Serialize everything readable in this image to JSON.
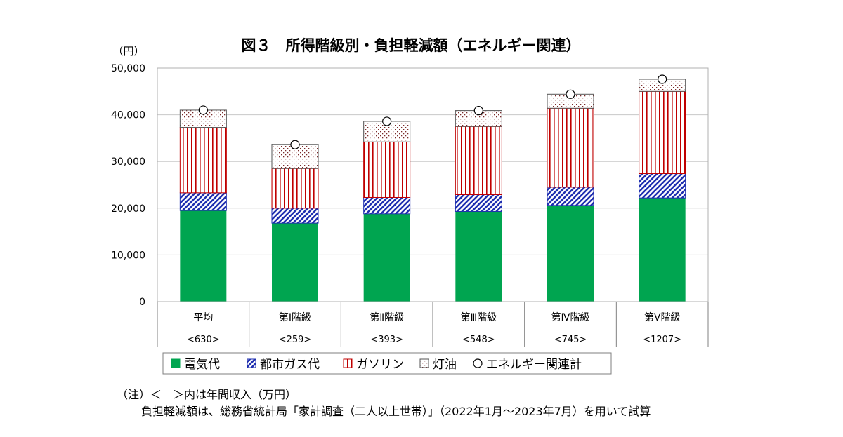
{
  "chart_data": {
    "type": "bar",
    "title": "図３　所得階級別・負担軽減額（エネルギー関連）",
    "yunit": "（円）",
    "ylim": [
      0,
      50000
    ],
    "yticks": [
      "0",
      "10,000",
      "20,000",
      "30,000",
      "40,000",
      "50,000"
    ],
    "grid": true,
    "legend_position": "bottom",
    "categories": [
      "平均",
      "第Ⅰ階級",
      "第Ⅱ階級",
      "第Ⅲ階級",
      "第Ⅳ階級",
      "第Ⅴ階級"
    ],
    "incomes": [
      "<630>",
      "<259>",
      "<393>",
      "<548>",
      "<745>",
      "<1207>"
    ],
    "series": [
      {
        "name": "電気代",
        "values": [
          19500,
          16800,
          18800,
          19300,
          20600,
          22200
        ]
      },
      {
        "name": "都市ガス代",
        "values": [
          3800,
          3200,
          3500,
          3600,
          3900,
          5200
        ]
      },
      {
        "name": "ガソリン",
        "values": [
          14000,
          8500,
          11900,
          14600,
          16900,
          17600
        ]
      },
      {
        "name": "灯油",
        "values": [
          3700,
          5100,
          4400,
          3400,
          3000,
          2600
        ]
      }
    ],
    "total_series": {
      "name": "エネルギー関連計",
      "values": [
        41000,
        33600,
        38600,
        40900,
        44400,
        47600
      ]
    },
    "colors": {
      "電気代": "#00a550",
      "都市ガス代": "#1f2fb0",
      "ガソリン": "#c00000",
      "灯油": "#7a2a2a"
    }
  },
  "notes": {
    "line1": "（注）＜　＞内は年間収入（万円）",
    "line2": "負担軽減額は、総務省統計局「家計調査（二人以上世帯）」（2022年1月～2023年7月）を用いて試算"
  }
}
